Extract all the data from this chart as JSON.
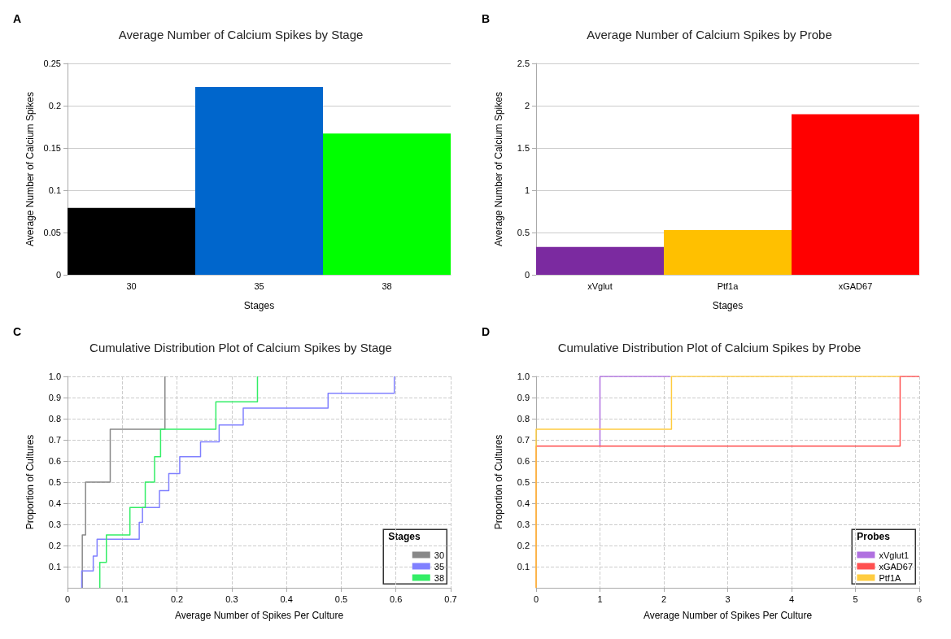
{
  "chart_data": [
    {
      "type": "bar",
      "title": "Average Number of Calcium Spikes by Stage",
      "annotations": [
        "A"
      ],
      "xlabel": "Stages",
      "ylabel": "Average Number of Calcium Spikes",
      "categories": [
        "30",
        "35",
        "38"
      ],
      "values": [
        0.079,
        0.222,
        0.167
      ],
      "colors": [
        "#000000",
        "#0066cc",
        "#00ff00"
      ],
      "ylim": [
        0,
        0.25
      ],
      "yticks": [
        0,
        0.05,
        0.1,
        0.15,
        0.2,
        0.25
      ],
      "grid": "y",
      "legend": false
    },
    {
      "type": "bar",
      "title": "Average Number of Calcium Spikes by Probe",
      "annotations": [
        "B"
      ],
      "xlabel": "Stages",
      "ylabel": "Average Number of Calcium Spikes",
      "categories": [
        "xVglut",
        "Ptf1a",
        "xGAD67"
      ],
      "values": [
        0.33,
        0.53,
        1.9
      ],
      "colors": [
        "#7b2aa0",
        "#ffc000",
        "#ff0000"
      ],
      "ylim": [
        0,
        2.5
      ],
      "yticks": [
        0,
        0.5,
        1,
        1.5,
        2,
        2.5
      ],
      "grid": "y",
      "legend": false
    },
    {
      "type": "step",
      "title": "Cumulative Distribution Plot of Calcium Spikes by Stage",
      "annotations": [
        "C"
      ],
      "xlabel": "Average Number of Spikes Per Culture",
      "ylabel": "Proportion of Cultures",
      "legend_title": "Stages",
      "legend": "bottom right",
      "grid": true,
      "marker": "none",
      "xlim": [
        0,
        0.7
      ],
      "xticks": [
        0,
        0.1,
        0.2,
        0.3,
        0.4,
        0.5,
        0.6,
        0.7
      ],
      "ylim": [
        0,
        1
      ],
      "yticks": [
        0.1,
        0.2,
        0.3,
        0.4,
        0.5,
        0.6,
        0.7,
        0.8,
        0.9,
        {
          "value": 1,
          "label": "1.0"
        }
      ],
      "series": [
        {
          "name": "30",
          "color": "#888888",
          "x": [
            0.027,
            0.027,
            0.033,
            0.078,
            0.178
          ],
          "values": [
            0,
            0.25,
            0.5,
            0.75,
            1.0
          ]
        },
        {
          "name": "35",
          "color": "#8080ff",
          "x": [
            0.026,
            0.026,
            0.047,
            0.054,
            0.131,
            0.137,
            0.168,
            0.185,
            0.205,
            0.243,
            0.277,
            0.321,
            0.476,
            0.597
          ],
          "values": [
            0,
            0.08,
            0.15,
            0.23,
            0.31,
            0.38,
            0.46,
            0.54,
            0.62,
            0.69,
            0.77,
            0.85,
            0.92,
            1.0
          ]
        },
        {
          "name": "38",
          "color": "#33ee66",
          "x": [
            0.059,
            0.059,
            0.071,
            0.114,
            0.142,
            0.159,
            0.17,
            0.271,
            0.347
          ],
          "values": [
            0,
            0.12,
            0.25,
            0.38,
            0.5,
            0.62,
            0.75,
            0.88,
            1.0
          ]
        }
      ]
    },
    {
      "type": "step",
      "title": "Cumulative Distribution Plot of Calcium Spikes by Probe",
      "annotations": [
        "D"
      ],
      "xlabel": "Average Number of Spikes Per Culture",
      "ylabel": "Proportion of Cultures",
      "legend_title": "Probes",
      "legend": "bottom right",
      "grid": true,
      "marker": "none",
      "xlim": [
        0,
        6
      ],
      "xticks": [
        0,
        1,
        2,
        3,
        4,
        5,
        6
      ],
      "ylim": [
        0,
        1
      ],
      "yticks": [
        0.1,
        0.2,
        0.3,
        0.4,
        0.5,
        0.6,
        0.7,
        0.8,
        0.9,
        {
          "value": 1,
          "label": "1.0"
        }
      ],
      "series": [
        {
          "name": "xVglut1",
          "color": "#b070e0",
          "x": [
            1,
            1,
            2.1
          ],
          "values": [
            0.67,
            1.0,
            1.0
          ]
        },
        {
          "name": "xGAD67",
          "color": "#ff5050",
          "x": [
            0,
            0,
            5.7,
            6
          ],
          "values": [
            0,
            0.67,
            1.0,
            1.0
          ]
        },
        {
          "name": "Ptf1A",
          "color": "#ffcc40",
          "x": [
            0,
            0,
            2.12,
            5.7
          ],
          "values": [
            0,
            0.75,
            1.0,
            1.0
          ]
        }
      ]
    }
  ]
}
